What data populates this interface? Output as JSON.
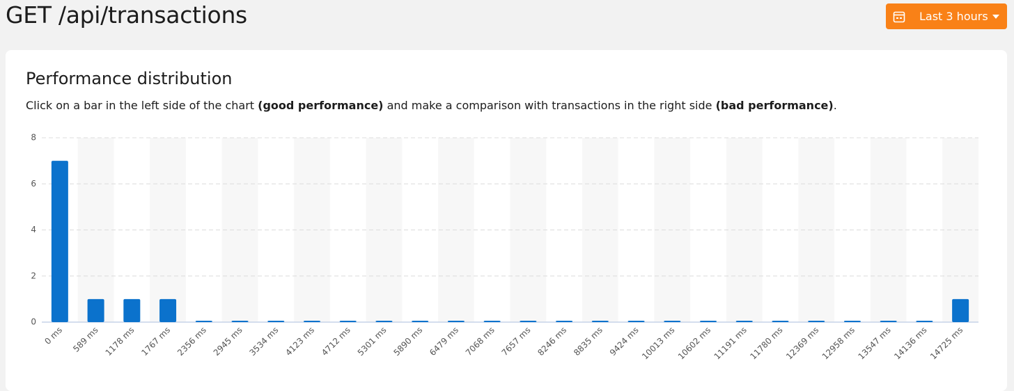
{
  "header": {
    "title": "GET /api/transactions",
    "time_range": "Last 3 hours"
  },
  "panel": {
    "title": "Performance distribution",
    "description": [
      "Click on a bar in the left side of the chart ",
      "(good performance)",
      " and make a comparison with transactions in the right side ",
      "(bad performance)",
      "."
    ]
  },
  "chart_data": {
    "type": "bar",
    "categories": [
      "0 ms",
      "589 ms",
      "1178 ms",
      "1767 ms",
      "2356 ms",
      "2945 ms",
      "3534 ms",
      "4123 ms",
      "4712 ms",
      "5301 ms",
      "5890 ms",
      "6479 ms",
      "7068 ms",
      "7657 ms",
      "8246 ms",
      "8835 ms",
      "9424 ms",
      "10013 ms",
      "10602 ms",
      "11191 ms",
      "11780 ms",
      "12369 ms",
      "12958 ms",
      "13547 ms",
      "14136 ms",
      "14725 ms"
    ],
    "values": [
      7,
      1,
      1,
      1,
      0,
      0,
      0,
      0,
      0,
      0,
      0,
      0,
      0,
      0,
      0,
      0,
      0,
      0,
      0,
      0,
      0,
      0,
      0,
      0,
      0,
      1
    ],
    "color": "#0b72cc",
    "ylim": [
      0,
      8
    ],
    "yticks": [
      0,
      2,
      4,
      6,
      8
    ],
    "grid": true
  }
}
